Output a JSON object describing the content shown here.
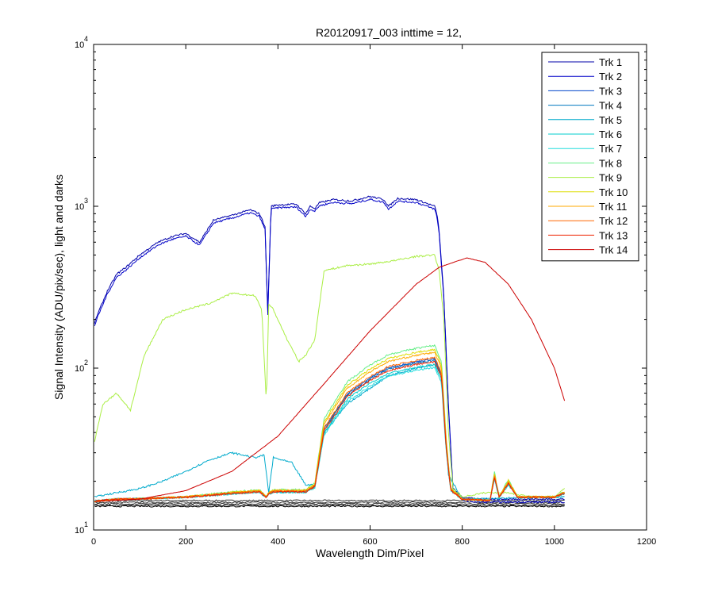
{
  "chart_data": {
    "type": "line",
    "title": "R20120917_003 inttime = 12,",
    "xlabel": "Wavelength Dim/Pixel",
    "ylabel": "Signal Intensity (ADU/pix/sec), light and darks",
    "xlim": [
      0,
      1200
    ],
    "ylim": [
      10,
      10000
    ],
    "yscale": "log",
    "grid": false,
    "legend_position": "top-right",
    "x_ticks": [
      "0",
      "200",
      "400",
      "600",
      "800",
      "1000",
      "1200"
    ],
    "y_ticks": [
      {
        "base": "10",
        "exp": "1",
        "value": 10
      },
      {
        "base": "10",
        "exp": "2",
        "value": 100
      },
      {
        "base": "10",
        "exp": "3",
        "value": 1000
      },
      {
        "base": "10",
        "exp": "4",
        "value": 10000
      }
    ],
    "series": [
      {
        "name": "Trk 1",
        "color": "#0000aa",
        "shape": "top"
      },
      {
        "name": "Trk 2",
        "color": "#0000c8",
        "shape": "top"
      },
      {
        "name": "Trk 3",
        "color": "#0044cc",
        "shape": "mid"
      },
      {
        "name": "Trk 4",
        "color": "#0077c0",
        "shape": "mid"
      },
      {
        "name": "Trk 5",
        "color": "#00aacc",
        "shape": "cyanhump"
      },
      {
        "name": "Trk 6",
        "color": "#00cccc",
        "shape": "mid"
      },
      {
        "name": "Trk 7",
        "color": "#22dddd",
        "shape": "mid"
      },
      {
        "name": "Trk 8",
        "color": "#66ee88",
        "shape": "mid"
      },
      {
        "name": "Trk 9",
        "color": "#aaee44",
        "shape": "upper"
      },
      {
        "name": "Trk 10",
        "color": "#dddd00",
        "shape": "mid"
      },
      {
        "name": "Trk 11",
        "color": "#ffaa00",
        "shape": "mid"
      },
      {
        "name": "Trk 12",
        "color": "#ff6600",
        "shape": "mid"
      },
      {
        "name": "Trk 13",
        "color": "#ee2200",
        "shape": "mid"
      },
      {
        "name": "Trk 14",
        "color": "#cc0000",
        "shape": "dome"
      }
    ],
    "top_curve": {
      "x": [
        2,
        10,
        30,
        50,
        70,
        100,
        140,
        170,
        200,
        230,
        260,
        300,
        340,
        360,
        372,
        378,
        385,
        400,
        440,
        460,
        470,
        480,
        490,
        520,
        560,
        600,
        630,
        640,
        660,
        700,
        720,
        740,
        745,
        750,
        760,
        770,
        780,
        800,
        830,
        860,
        900,
        950,
        1000,
        1020
      ],
      "y": [
        190,
        220,
        300,
        380,
        420,
        500,
        600,
        650,
        680,
        600,
        820,
        880,
        950,
        900,
        750,
        220,
        1000,
        1020,
        1030,
        900,
        1000,
        970,
        1050,
        1100,
        1080,
        1150,
        1100,
        1000,
        1120,
        1100,
        1050,
        1000,
        900,
        700,
        280,
        60,
        18,
        16,
        15.5,
        15.5,
        15.5,
        15.5,
        15.5,
        15.5
      ]
    },
    "upper_curve": {
      "x": [
        2,
        20,
        50,
        80,
        110,
        150,
        200,
        250,
        300,
        350,
        365,
        375,
        380,
        390,
        420,
        445,
        460,
        480,
        500,
        550,
        600,
        650,
        700,
        740,
        750,
        760,
        770,
        780,
        800,
        850,
        900,
        950,
        1000,
        1020
      ],
      "y": [
        35,
        60,
        70,
        55,
        120,
        200,
        230,
        250,
        290,
        280,
        230,
        60,
        250,
        230,
        150,
        110,
        120,
        150,
        400,
        430,
        440,
        460,
        490,
        500,
        400,
        200,
        40,
        18,
        16,
        17,
        17,
        16,
        16,
        18
      ]
    },
    "mid_curve": {
      "x": [
        2,
        50,
        100,
        150,
        200,
        250,
        300,
        360,
        375,
        380,
        390,
        430,
        460,
        480,
        500,
        550,
        600,
        640,
        700,
        740,
        755,
        765,
        775,
        800,
        860,
        870,
        880,
        900,
        920,
        960,
        1000,
        1020
      ],
      "y": [
        15,
        15.5,
        15.6,
        15.8,
        16,
        16.5,
        17,
        17.5,
        16,
        17,
        17.5,
        17.5,
        17.5,
        19,
        45,
        75,
        95,
        110,
        120,
        125,
        100,
        35,
        18,
        15.5,
        15.2,
        22,
        16,
        20,
        16,
        16,
        16,
        17
      ]
    },
    "cyan_curve": {
      "x": [
        2,
        50,
        100,
        150,
        200,
        250,
        300,
        350,
        370,
        380,
        390,
        430,
        460,
        480,
        500,
        550,
        600,
        640,
        700,
        740,
        755,
        770,
        800,
        1020
      ],
      "y": [
        16,
        17,
        18,
        20,
        23,
        27,
        30,
        28,
        29,
        17,
        28,
        26,
        19,
        19,
        40,
        60,
        75,
        90,
        100,
        105,
        90,
        22,
        15.5,
        16
      ]
    },
    "dome_curve": {
      "x": [
        2,
        100,
        200,
        300,
        400,
        500,
        600,
        700,
        750,
        810,
        850,
        900,
        950,
        1000,
        1022
      ],
      "y": [
        15,
        15.5,
        17.5,
        23,
        38,
        80,
        170,
        330,
        420,
        480,
        450,
        330,
        200,
        100,
        63
      ]
    },
    "dark_levels": [
      15.2,
      14.8,
      14.5,
      14.2,
      14.0
    ]
  }
}
